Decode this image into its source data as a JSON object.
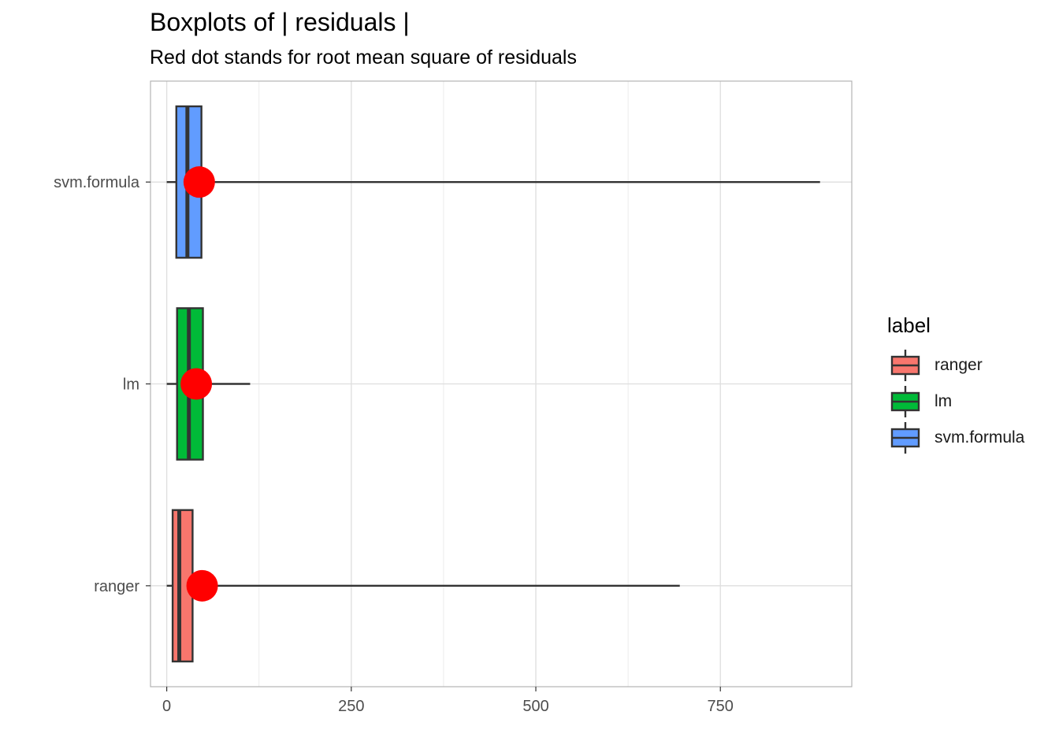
{
  "chart_data": {
    "type": "boxplot",
    "title": "Boxplots of | residuals |",
    "subtitle": "Red dot stands for root mean square of residuals",
    "xlabel": "",
    "ylabel": "",
    "orientation": "horizontal",
    "xlim": [
      -22,
      928
    ],
    "x_ticks": [
      0,
      250,
      500,
      750
    ],
    "x_tick_labels": [
      "0",
      "250",
      "500",
      "750"
    ],
    "categories": [
      "ranger",
      "lm",
      "svm.formula"
    ],
    "grid": true,
    "legend": {
      "title": "label",
      "position": "right",
      "entries": [
        "ranger",
        "lm",
        "svm.formula"
      ]
    },
    "series": [
      {
        "name": "ranger",
        "color": "#F8766D",
        "min": 0,
        "q1": 8,
        "median": 17,
        "q3": 35,
        "max": 695,
        "rmse": 48
      },
      {
        "name": "lm",
        "color": "#00BA38",
        "min": 0,
        "q1": 14,
        "median": 30,
        "q3": 49,
        "max": 113,
        "rmse": 40
      },
      {
        "name": "svm.formula",
        "color": "#619CFF",
        "min": 0,
        "q1": 13,
        "median": 28,
        "q3": 47,
        "max": 885,
        "rmse": 44
      }
    ],
    "point_color": "#FF0000"
  }
}
